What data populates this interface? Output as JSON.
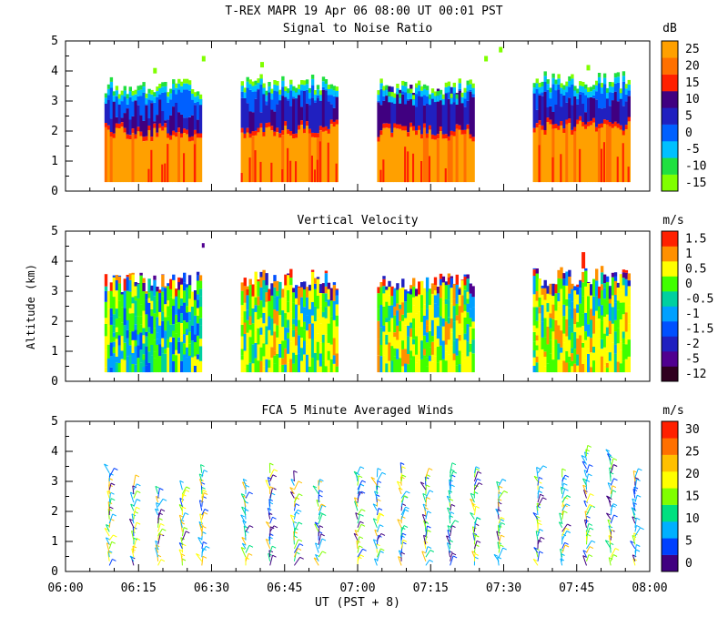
{
  "figure": {
    "title": "T-REX  MAPR 19 Apr 06  08:00 UT  00:01  PST",
    "xlabel": "UT  (PST + 8)",
    "ylabel": "Altitude  (km)"
  },
  "chart_data": [
    {
      "type": "heatmap",
      "title": "Signal to Noise Ratio",
      "unit": "dB",
      "x_ticks": [
        "06:00",
        "06:15",
        "06:30",
        "06:45",
        "07:00",
        "07:15",
        "07:30",
        "07:45",
        "08:00"
      ],
      "xlim": [
        "06:00",
        "08:00"
      ],
      "ylim": [
        0,
        5
      ],
      "y_ticks": [
        0,
        1,
        2,
        3,
        4,
        5
      ],
      "colorbar": {
        "levels": [
          -15,
          -10,
          -5,
          0,
          5,
          10,
          15,
          20,
          25
        ],
        "colors": [
          "#80ff00",
          "#20e040",
          "#00c0ff",
          "#0060ff",
          "#2020c0",
          "#400080",
          "#ff2000",
          "#ff7000",
          "#ffa000"
        ]
      },
      "segments": [
        {
          "start": "06:08",
          "end": "06:28",
          "low_signal_top_km": 1.9,
          "echo_top_km": 3.5,
          "band_top_km": 2.7
        },
        {
          "start": "06:36",
          "end": "06:56",
          "low_signal_top_km": 2.0,
          "echo_top_km": 3.6,
          "band_top_km": 3.0
        },
        {
          "start": "07:04",
          "end": "07:24",
          "low_signal_top_km": 1.9,
          "echo_top_km": 3.5,
          "band_top_km": 3.2
        },
        {
          "start": "07:36",
          "end": "07:56",
          "low_signal_top_km": 2.1,
          "echo_top_km": 3.7,
          "band_top_km": 3.0
        }
      ],
      "description_values": {
        "near_surface_snr_db": 25,
        "upper_snr_db": -10,
        "peak_echo_top_km": 4.3
      }
    },
    {
      "type": "heatmap",
      "title": "Vertical Velocity",
      "unit": "m/s",
      "x_ticks": [
        "06:00",
        "06:15",
        "06:30",
        "06:45",
        "07:00",
        "07:15",
        "07:30",
        "07:45",
        "08:00"
      ],
      "xlim": [
        "06:00",
        "08:00"
      ],
      "ylim": [
        0,
        5
      ],
      "y_ticks": [
        0,
        1,
        2,
        3,
        4,
        5
      ],
      "colorbar": {
        "levels": [
          -12,
          -5,
          -2,
          -1.5,
          -1,
          -0.5,
          0,
          0.5,
          1,
          1.5
        ],
        "colors": [
          "#300020",
          "#500090",
          "#2020c0",
          "#0050ff",
          "#00a0ff",
          "#00d0a0",
          "#40ff00",
          "#ffff00",
          "#ff9000",
          "#ff2000"
        ]
      },
      "segments": [
        {
          "start": "06:08",
          "end": "06:28",
          "mean_w": -0.5,
          "echo_top_km": 3.3
        },
        {
          "start": "06:36",
          "end": "06:56",
          "mean_w": 0.2,
          "echo_top_km": 3.4
        },
        {
          "start": "07:04",
          "end": "07:24",
          "mean_w": 0.0,
          "echo_top_km": 3.3
        },
        {
          "start": "07:36",
          "end": "07:56",
          "mean_w": -0.2,
          "echo_top_km": 3.5
        }
      ]
    },
    {
      "type": "wind_barbs",
      "title": "FCA 5 Minute Averaged Winds",
      "unit": "m/s",
      "x_ticks": [
        "06:00",
        "06:15",
        "06:30",
        "06:45",
        "07:00",
        "07:15",
        "07:30",
        "07:45",
        "08:00"
      ],
      "xlim": [
        "06:00",
        "08:00"
      ],
      "ylim": [
        0,
        5
      ],
      "y_ticks": [
        0,
        1,
        2,
        3,
        4,
        5
      ],
      "colorbar": {
        "levels": [
          0,
          5,
          10,
          15,
          20,
          25,
          30
        ],
        "colors": [
          "#400080",
          "#0040ff",
          "#00b0ff",
          "#00e080",
          "#80ff00",
          "#ffff00",
          "#ffc000",
          "#ff7000",
          "#ff2000"
        ],
        "labels": [
          "0",
          "5",
          "10",
          "15",
          "20",
          "25",
          "30"
        ]
      },
      "profiles": [
        {
          "time": "06:09",
          "top_km": 3.3
        },
        {
          "time": "06:14",
          "top_km": 2.9
        },
        {
          "time": "06:19",
          "top_km": 2.6
        },
        {
          "time": "06:24",
          "top_km": 2.8
        },
        {
          "time": "06:28",
          "top_km": 3.4
        },
        {
          "time": "06:37",
          "top_km": 3.0
        },
        {
          "time": "06:42",
          "top_km": 3.3
        },
        {
          "time": "06:47",
          "top_km": 3.1
        },
        {
          "time": "06:52",
          "top_km": 2.9
        },
        {
          "time": "07:00",
          "top_km": 3.4
        },
        {
          "time": "07:04",
          "top_km": 3.2
        },
        {
          "time": "07:09",
          "top_km": 3.3
        },
        {
          "time": "07:14",
          "top_km": 3.2
        },
        {
          "time": "07:19",
          "top_km": 3.3
        },
        {
          "time": "07:24",
          "top_km": 3.3
        },
        {
          "time": "07:29",
          "top_km": 2.9
        },
        {
          "time": "07:37",
          "top_km": 3.4
        },
        {
          "time": "07:42",
          "top_km": 3.2
        },
        {
          "time": "07:47",
          "top_km": 4.1
        },
        {
          "time": "07:52",
          "top_km": 3.9
        },
        {
          "time": "07:57",
          "top_km": 3.2
        }
      ]
    }
  ]
}
